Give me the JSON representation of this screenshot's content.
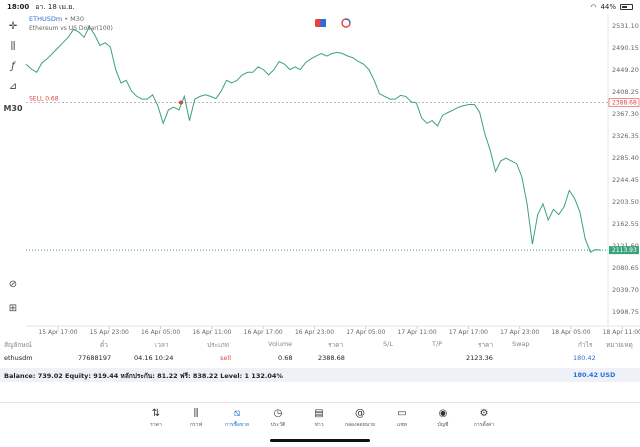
{
  "status": {
    "time": "18:00",
    "date": "อา. 18 เม.ย.",
    "battery": "44%"
  },
  "chart": {
    "symbol": "ETHUSDm",
    "timeframe": "M30",
    "description": "Ethereum vs US Dollar(100)",
    "sell_label": "SELL 0.68",
    "sidebar_timeframe": "M30"
  },
  "chart_data": {
    "type": "line",
    "y_ticks": [
      "2531.10",
      "2490.15",
      "2449.20",
      "2408.25",
      "2367.30",
      "2326.35",
      "2285.40",
      "2244.45",
      "2203.50",
      "2162.55",
      "2121.60",
      "2080.65",
      "2039.70",
      "1998.75"
    ],
    "x_ticks": [
      "15 Apr 17:00",
      "15 Apr 23:00",
      "16 Apr 05:00",
      "16 Apr 11:00",
      "16 Apr 17:00",
      "16 Apr 23:00",
      "17 Apr 05:00",
      "17 Apr 11:00",
      "17 Apr 17:00",
      "17 Apr 23:00",
      "18 Apr 05:00",
      "18 Apr 11:00"
    ],
    "ylim": [
      1998.75,
      2531.1
    ],
    "open_price": "2388.68",
    "current_price": "2113.93",
    "open_price_value": 2388.68,
    "current_price_value": 2113.93,
    "series": [
      {
        "color": "#3aa37a",
        "values": [
          2460,
          2451,
          2445,
          2462,
          2470,
          2480,
          2490,
          2500,
          2510,
          2525,
          2520,
          2510,
          2530,
          2515,
          2495,
          2500,
          2492,
          2450,
          2425,
          2430,
          2410,
          2400,
          2395,
          2395,
          2403,
          2382,
          2350,
          2375,
          2380,
          2375,
          2400,
          2355,
          2395,
          2400,
          2403,
          2400,
          2396,
          2410,
          2430,
          2425,
          2430,
          2440,
          2445,
          2445,
          2455,
          2450,
          2440,
          2450,
          2465,
          2460,
          2450,
          2455,
          2450,
          2463,
          2470,
          2475,
          2480,
          2475,
          2480,
          2482,
          2480,
          2475,
          2472,
          2465,
          2460,
          2450,
          2430,
          2405,
          2400,
          2395,
          2395,
          2402,
          2400,
          2390,
          2388,
          2360,
          2350,
          2355,
          2345,
          2365,
          2370,
          2375,
          2380,
          2383,
          2385,
          2385,
          2370,
          2330,
          2300,
          2260,
          2280,
          2285,
          2280,
          2275,
          2250,
          2200,
          2125,
          2180,
          2200,
          2170,
          2190,
          2180,
          2195,
          2225,
          2210,
          2185,
          2135,
          2110,
          2115,
          2113.93
        ]
      }
    ]
  },
  "positions": {
    "headers": [
      "สัญลักษณ์",
      "ตั๋ว",
      "เวลา",
      "ประเภท",
      "Volume",
      "ราคา",
      "S/L",
      "T/P",
      "ราคา",
      "Swap",
      "กำไร",
      "หมายเหตุ"
    ],
    "row": {
      "symbol": "ethusdm",
      "ticket": "77688197",
      "time": "04.16 10:24",
      "type": "sell",
      "volume": "0.68",
      "price": "2388.68",
      "current": "2123.36",
      "profit": "180.42"
    },
    "balance": "Balance: 739.02 Equity: 919.44 หลักประกัน: 81.22 ฟรี: 838.22 Level: 1 132.04%",
    "balance_profit": "180.42",
    "currency": "USD"
  },
  "tabs": [
    {
      "icon": "quotes-icon",
      "label": "ราคา"
    },
    {
      "icon": "chart-icon",
      "label": "กราฟ"
    },
    {
      "icon": "trade-icon",
      "label": "การซื้อขาย"
    },
    {
      "icon": "history-icon",
      "label": "ประวัติ"
    },
    {
      "icon": "news-icon",
      "label": "ข่าว"
    },
    {
      "icon": "mailbox-icon",
      "label": "กล่องจดหมาย"
    },
    {
      "icon": "chat-icon",
      "label": "แชท"
    },
    {
      "icon": "account-icon",
      "label": "บัญชี"
    },
    {
      "icon": "settings-icon",
      "label": "การตั้งค่า"
    }
  ],
  "colors": {
    "line": "#3aa37a",
    "sell": "#e0453c",
    "profit": "#2b6fd6",
    "accent": "#2b6fd6"
  }
}
